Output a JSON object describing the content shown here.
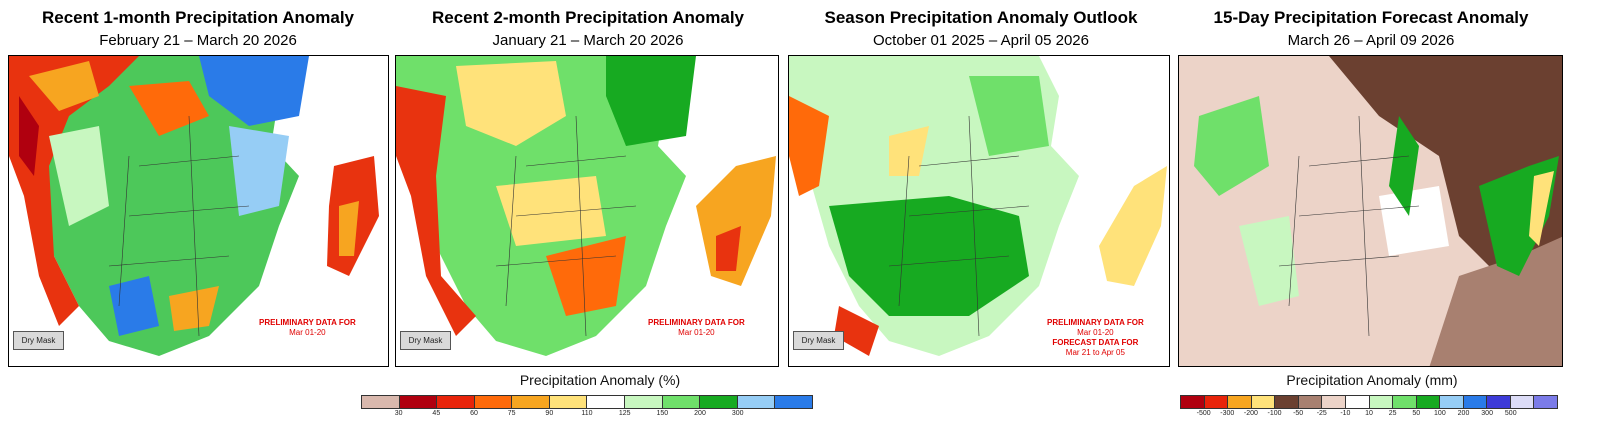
{
  "panels": [
    {
      "title": "Recent 1-month Precipitation Anomaly",
      "subtitle": "February 21 – March 20 2026",
      "dry_mask": "Dry Mask",
      "note_bold": "PRELIMINARY DATA FOR",
      "note_text": "Mar 01-20"
    },
    {
      "title": "Recent 2-month Precipitation Anomaly",
      "subtitle": "January 21 – March 20 2026",
      "dry_mask": "Dry Mask",
      "note_bold": "PRELIMINARY DATA FOR",
      "note_text": "Mar 01-20"
    },
    {
      "title": "Season Precipitation Anomaly Outlook",
      "subtitle": "October 01 2025 – April 05 2026",
      "dry_mask": "Dry Mask",
      "note_bold": "PRELIMINARY DATA FOR",
      "note_text": "Mar 01-20",
      "note_bold2": "FORECAST DATA FOR",
      "note_text2": "Mar 21 to Apr 05"
    },
    {
      "title": "15-Day Precipitation Forecast Anomaly",
      "subtitle": "March 26 – April 09 2026"
    }
  ],
  "legend_percent": {
    "title": "Precipitation Anomaly (%)",
    "colors": [
      "#d9b8ad",
      "#b0000f",
      "#e8240a",
      "#ff6a0a",
      "#f7a520",
      "#ffe27a",
      "#ffffff",
      "#c8f7c0",
      "#6fe06a",
      "#17aa21",
      "#96cdf5",
      "#2a7be8"
    ],
    "ticks": [
      "30",
      "45",
      "60",
      "75",
      "90",
      "110",
      "125",
      "150",
      "200",
      "300"
    ]
  },
  "legend_mm": {
    "title": "Precipitation Anomaly (mm)",
    "colors": [
      "#b0000f",
      "#e8240a",
      "#f7a520",
      "#ffe27a",
      "#6b4030",
      "#a88070",
      "#ecd3c8",
      "#ffffff",
      "#c8f7c0",
      "#6fe06a",
      "#17aa21",
      "#96cdf5",
      "#2a7be8",
      "#3d3bd8",
      "#dcdcf7",
      "#7b7be8"
    ],
    "ticks": [
      "-500",
      "-300",
      "-200",
      "-100",
      "-50",
      "-25",
      "-10",
      "10",
      "25",
      "50",
      "100",
      "200",
      "300",
      "500"
    ]
  }
}
